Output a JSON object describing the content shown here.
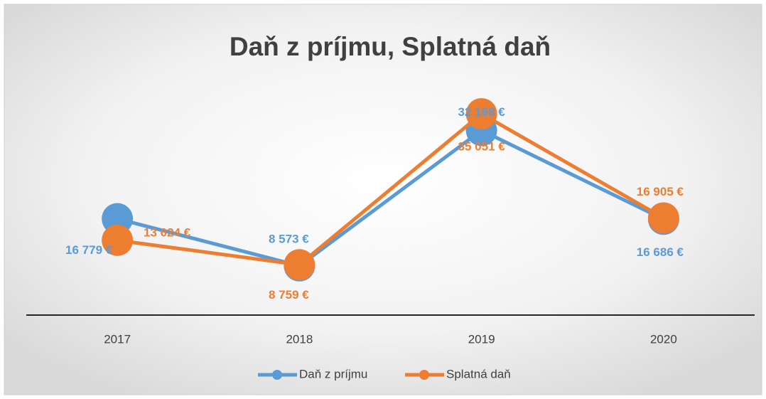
{
  "chart_data": {
    "type": "line",
    "title": "Daň z príjmu, Splatná daň",
    "categories": [
      "2017",
      "2018",
      "2019",
      "2020"
    ],
    "series": [
      {
        "name": "Daň z príjmu",
        "color": "#5b9bd5",
        "values": [
          16779,
          8573,
          32168,
          16686
        ],
        "value_labels": [
          "16 779 €",
          "8 573 €",
          "32 168 €",
          "16 686 €"
        ]
      },
      {
        "name": "Splatná daň",
        "color": "#ed7d31",
        "values": [
          13024,
          8759,
          35051,
          16905
        ],
        "value_labels": [
          "13 024 €",
          "8 759 €",
          "35 051 €",
          "16 905 €"
        ]
      }
    ],
    "legend": "bottom"
  }
}
